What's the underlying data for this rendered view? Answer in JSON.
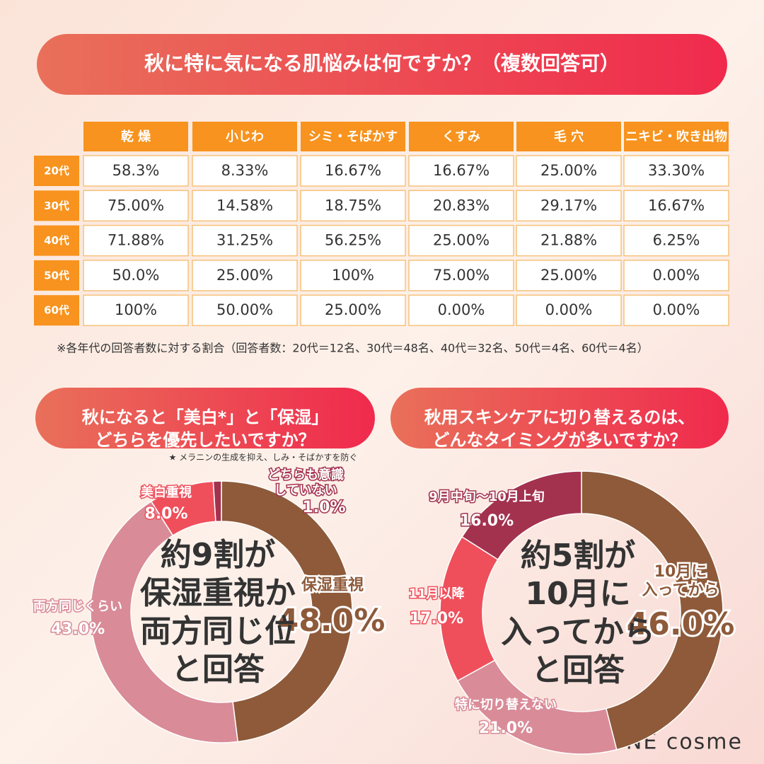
{
  "title": "秋に特に気になる肌悩みは何ですか？（複数回答可）",
  "table": {
    "columns": [
      "乾 燥",
      "小じわ",
      "シミ・そばかす",
      "くすみ",
      "毛 穴",
      "ニキビ・吹き出物"
    ],
    "rows": [
      {
        "label": "20代",
        "cells": [
          "58.3%",
          "8.33%",
          "16.67%",
          "16.67%",
          "25.00%",
          "33.30%"
        ]
      },
      {
        "label": "30代",
        "cells": [
          "75.00%",
          "14.58%",
          "18.75%",
          "20.83%",
          "29.17%",
          "16.67%"
        ]
      },
      {
        "label": "40代",
        "cells": [
          "71.88%",
          "31.25%",
          "56.25%",
          "25.00%",
          "21.88%",
          "6.25%"
        ]
      },
      {
        "label": "50代",
        "cells": [
          "50.0%",
          "25.00%",
          "100%",
          "75.00%",
          "25.00%",
          "0.00%"
        ]
      },
      {
        "label": "60代",
        "cells": [
          "100%",
          "50.00%",
          "25.00%",
          "0.00%",
          "0.00%",
          "0.00%"
        ]
      }
    ]
  },
  "note": "※各年代の回答者数に対する割合（回答者数：20代＝12名、30代＝48名、40代＝32名、50代＝4名、60代＝4名）",
  "chart_data": [
    {
      "type": "pie",
      "title": [
        "秋になると「美白*」と「保湿」",
        "どちらを優先したいですか？"
      ],
      "footnote": "★ メラニンの生成を抑え、しみ・そばかすを防ぐ",
      "categories": [
        "保湿重視",
        "両方同じくらい",
        "美白重視",
        "どちらも意識\nしていない"
      ],
      "values": [
        48.0,
        43.0,
        8.0,
        1.0
      ],
      "value_labels": [
        "48.0%",
        "43.0%",
        "8.0%",
        "1.0%"
      ],
      "colors": [
        "#8e5a3a",
        "#d98b98",
        "#ef4f5b",
        "#a3324f"
      ],
      "annotation": [
        "約9割が",
        "保湿重視か",
        "両方同じ位",
        "と回答"
      ]
    },
    {
      "type": "pie",
      "title": [
        "秋用スキンケアに切り替えるのは、",
        "どんなタイミングが多いですか？"
      ],
      "categories": [
        "10月に\n入ってから",
        "特に切り替えない",
        "11月以降",
        "9月中旬〜10月上旬"
      ],
      "values": [
        46.0,
        21.0,
        17.0,
        16.0
      ],
      "value_labels": [
        "46.0%",
        "21.0%",
        "17.0%",
        "16.0%"
      ],
      "colors": [
        "#8e5a3a",
        "#d98b98",
        "#ef4f5b",
        "#a3324f"
      ],
      "annotation": [
        "約5割が",
        "10月に",
        "入ってから",
        "と回答"
      ]
    }
  ],
  "logo": "ONE cosme"
}
